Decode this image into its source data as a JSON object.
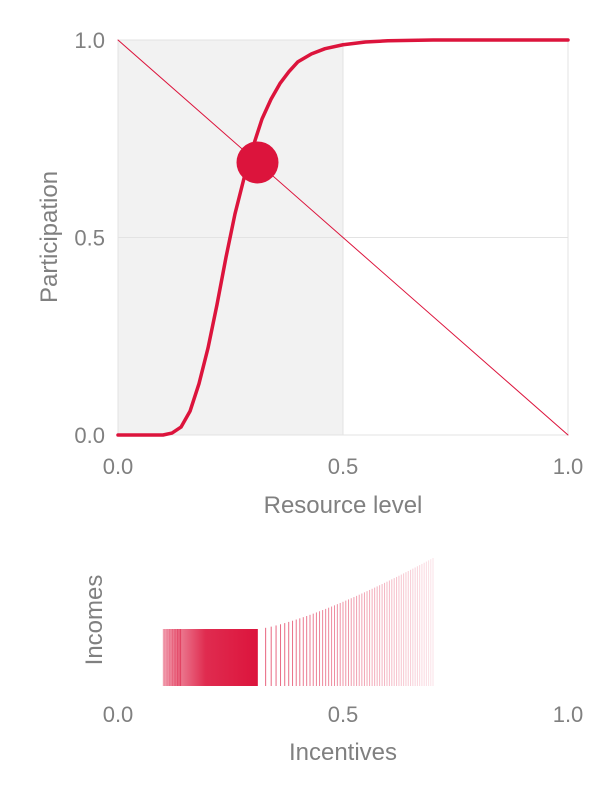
{
  "chart_data": [
    {
      "type": "line",
      "xlabel": "Resource level",
      "ylabel": "Participation",
      "xlim": [
        0,
        1
      ],
      "ylim": [
        0,
        1
      ],
      "x_ticks": [
        "0.0",
        "0.5",
        "1.0"
      ],
      "y_ticks": [
        "0.0",
        "0.5",
        "1.0"
      ],
      "grid": true,
      "shaded_region": {
        "x_from": 0.0,
        "x_to": 0.5,
        "color": "#f2f2f2"
      },
      "series": [
        {
          "kind": "curve",
          "color": "#dc143c",
          "x": [
            0.0,
            0.08,
            0.1,
            0.12,
            0.14,
            0.16,
            0.18,
            0.2,
            0.22,
            0.24,
            0.26,
            0.28,
            0.3,
            0.32,
            0.34,
            0.36,
            0.38,
            0.4,
            0.43,
            0.46,
            0.5,
            0.55,
            0.6,
            0.7,
            0.8,
            1.0
          ],
          "y": [
            0.0,
            0.0,
            0.0,
            0.005,
            0.02,
            0.06,
            0.13,
            0.22,
            0.33,
            0.45,
            0.56,
            0.65,
            0.73,
            0.8,
            0.85,
            0.89,
            0.92,
            0.945,
            0.965,
            0.978,
            0.988,
            0.995,
            0.998,
            1.0,
            1.0,
            1.0
          ]
        },
        {
          "kind": "straight-line",
          "color": "#dc143c",
          "x": [
            0.0,
            1.0
          ],
          "y": [
            1.0,
            0.0
          ]
        }
      ],
      "equilibrium_point": {
        "x": 0.31,
        "y": 0.69,
        "color": "#dc143c"
      }
    },
    {
      "type": "strip",
      "xlabel": "Incentives",
      "ylabel": "Incomes",
      "xlim": [
        0,
        1
      ],
      "x_ticks": [
        "0.0",
        "0.5",
        "1.0"
      ],
      "color": "#dc143c",
      "dense_band": {
        "x_from": 0.1,
        "x_to": 0.31
      },
      "sparse_band": {
        "x_from": 0.31,
        "x_to": 0.7
      }
    }
  ]
}
